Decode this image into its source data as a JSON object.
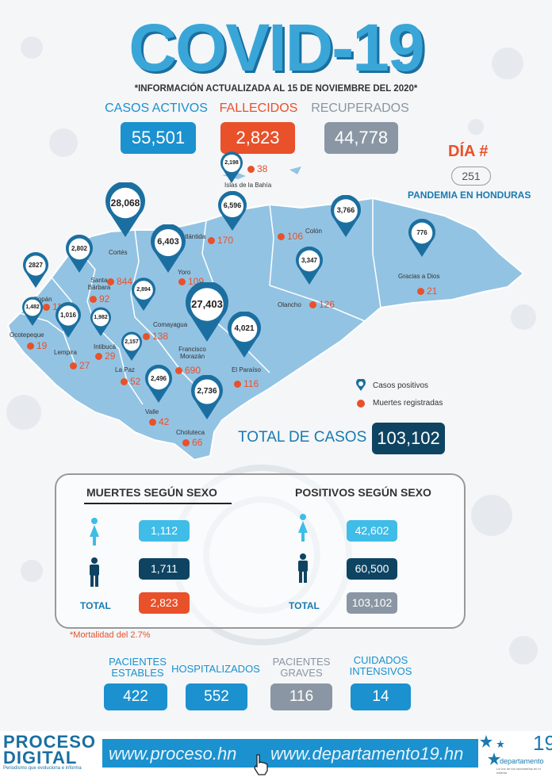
{
  "header": {
    "title": "COVID-19",
    "update_note": "*INFORMACIÓN ACTUALIZADA AL 15  DE NOVIEMBRE DEL 2020*"
  },
  "stats": {
    "activos": {
      "label": "CASOS ACTIVOS",
      "value": "55,501",
      "color": "#1b91cf"
    },
    "fallecidos": {
      "label": "FALLECIDOS",
      "value": "2,823",
      "color": "#e8512a"
    },
    "recuperados": {
      "label": "RECUPERADOS",
      "value": "44,778",
      "color": "#8a96a3"
    }
  },
  "dia": {
    "label": "DÍA #",
    "number": "251",
    "text": "PANDEMIA EN HONDURAS"
  },
  "departments": [
    {
      "name": "Islas de la Bahía",
      "cases": "2,198",
      "deaths": "38"
    },
    {
      "name": "Atlántida",
      "cases": "6,596",
      "deaths": "170"
    },
    {
      "name": "Cortés",
      "cases": "28,068",
      "deaths": "844"
    },
    {
      "name": "Colón",
      "cases": "3,766",
      "deaths": "106"
    },
    {
      "name": "Gracias a Dios",
      "cases": "776",
      "deaths": "21"
    },
    {
      "name": "Yoro",
      "cases": "6,403",
      "deaths": "109"
    },
    {
      "name": "Santa Bárbara",
      "cases": "2,802",
      "deaths": "92"
    },
    {
      "name": "Copán",
      "cases": "2827",
      "deaths": "115"
    },
    {
      "name": "Ocotepeque",
      "cases": "1,482",
      "deaths": "19"
    },
    {
      "name": "Lempira",
      "cases": "1,016",
      "deaths": "27"
    },
    {
      "name": "Intibucá",
      "cases": "1,982",
      "deaths": "29"
    },
    {
      "name": "Comayagua",
      "cases": "2,894",
      "deaths": "138"
    },
    {
      "name": "La Paz",
      "cases": "2,157",
      "deaths": "52"
    },
    {
      "name": "Francisco Morazán",
      "cases": "27,403",
      "deaths": "690"
    },
    {
      "name": "Olancho",
      "cases": "3,347",
      "deaths": "126"
    },
    {
      "name": "El Paraíso",
      "cases": "4,021",
      "deaths": "116"
    },
    {
      "name": "Valle",
      "cases": "2,496",
      "deaths": "42"
    },
    {
      "name": "Choluteca",
      "cases": "2,736",
      "deaths": "66"
    }
  ],
  "legend": {
    "positivos": "Casos positivos",
    "muertes": "Muertes registradas"
  },
  "total_casos": {
    "label": "TOTAL DE CASOS",
    "value": "103,102"
  },
  "panel": {
    "muertes": {
      "title": "MUERTES SEGÚN SEXO",
      "mujeres": "1,112",
      "hombres": "1,711",
      "total_label": "TOTAL",
      "total": "2,823"
    },
    "positivos": {
      "title": "POSITIVOS SEGÚN SEXO",
      "mujeres": "42,602",
      "hombres": "60,500",
      "total_label": "TOTAL",
      "total": "103,102"
    }
  },
  "mortalidad": "*Mortalidad del 2.7%",
  "pacientes": [
    {
      "label1": "PACIENTES",
      "label2": "ESTABLES",
      "value": "422",
      "color": "#1b91cf"
    },
    {
      "label1": "HOSPITALIZADOS",
      "label2": "",
      "value": "552",
      "color": "#1b91cf"
    },
    {
      "label1": "PACIENTES",
      "label2": "GRAVES",
      "value": "116",
      "color": "#8a96a3"
    },
    {
      "label1": "CUIDADOS",
      "label2": "INTENSIVOS",
      "value": "14",
      "color": "#1b91cf"
    }
  ],
  "footer": {
    "brand_line1": "PROCESO",
    "brand_line2": "DIGITAL",
    "tagline": "Periodismo que evoluciona e informa",
    "url1": "www.proceso.hn",
    "url2": "www.departamento19.hn",
    "logo_number": "19",
    "logo_word": "departamento",
    "logo_sub": "La voz de los hondureños en el exterior"
  }
}
